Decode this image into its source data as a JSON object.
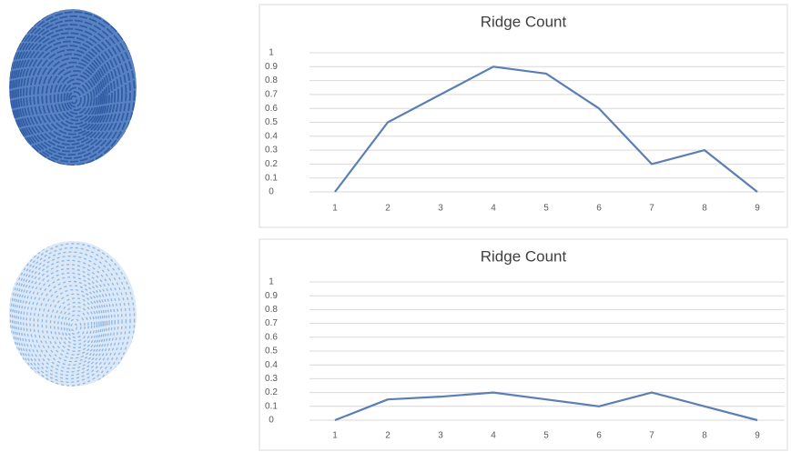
{
  "chart_data": [
    {
      "type": "line",
      "title": "Ridge Count",
      "categories": [
        "1",
        "2",
        "3",
        "4",
        "5",
        "6",
        "7",
        "8",
        "9"
      ],
      "values": [
        0,
        0.5,
        0.7,
        0.9,
        0.85,
        0.6,
        0.2,
        0.3,
        0
      ],
      "color": "#5b7fb5",
      "ylim": [
        0,
        1
      ],
      "yticks": [
        0,
        0.1,
        0.2,
        0.3,
        0.4,
        0.5,
        0.6,
        0.7,
        0.8,
        0.9,
        1
      ],
      "grid": true
    },
    {
      "type": "line",
      "title": "Ridge Count",
      "categories": [
        "1",
        "2",
        "3",
        "4",
        "5",
        "6",
        "7",
        "8",
        "9"
      ],
      "values": [
        0,
        0.15,
        0.17,
        0.2,
        0.15,
        0.1,
        0.2,
        0.1,
        0
      ],
      "color": "#5b7fb5",
      "ylim": [
        0,
        1
      ],
      "yticks": [
        0,
        0.1,
        0.2,
        0.3,
        0.4,
        0.5,
        0.6,
        0.7,
        0.8,
        0.9,
        1
      ],
      "grid": true
    }
  ]
}
